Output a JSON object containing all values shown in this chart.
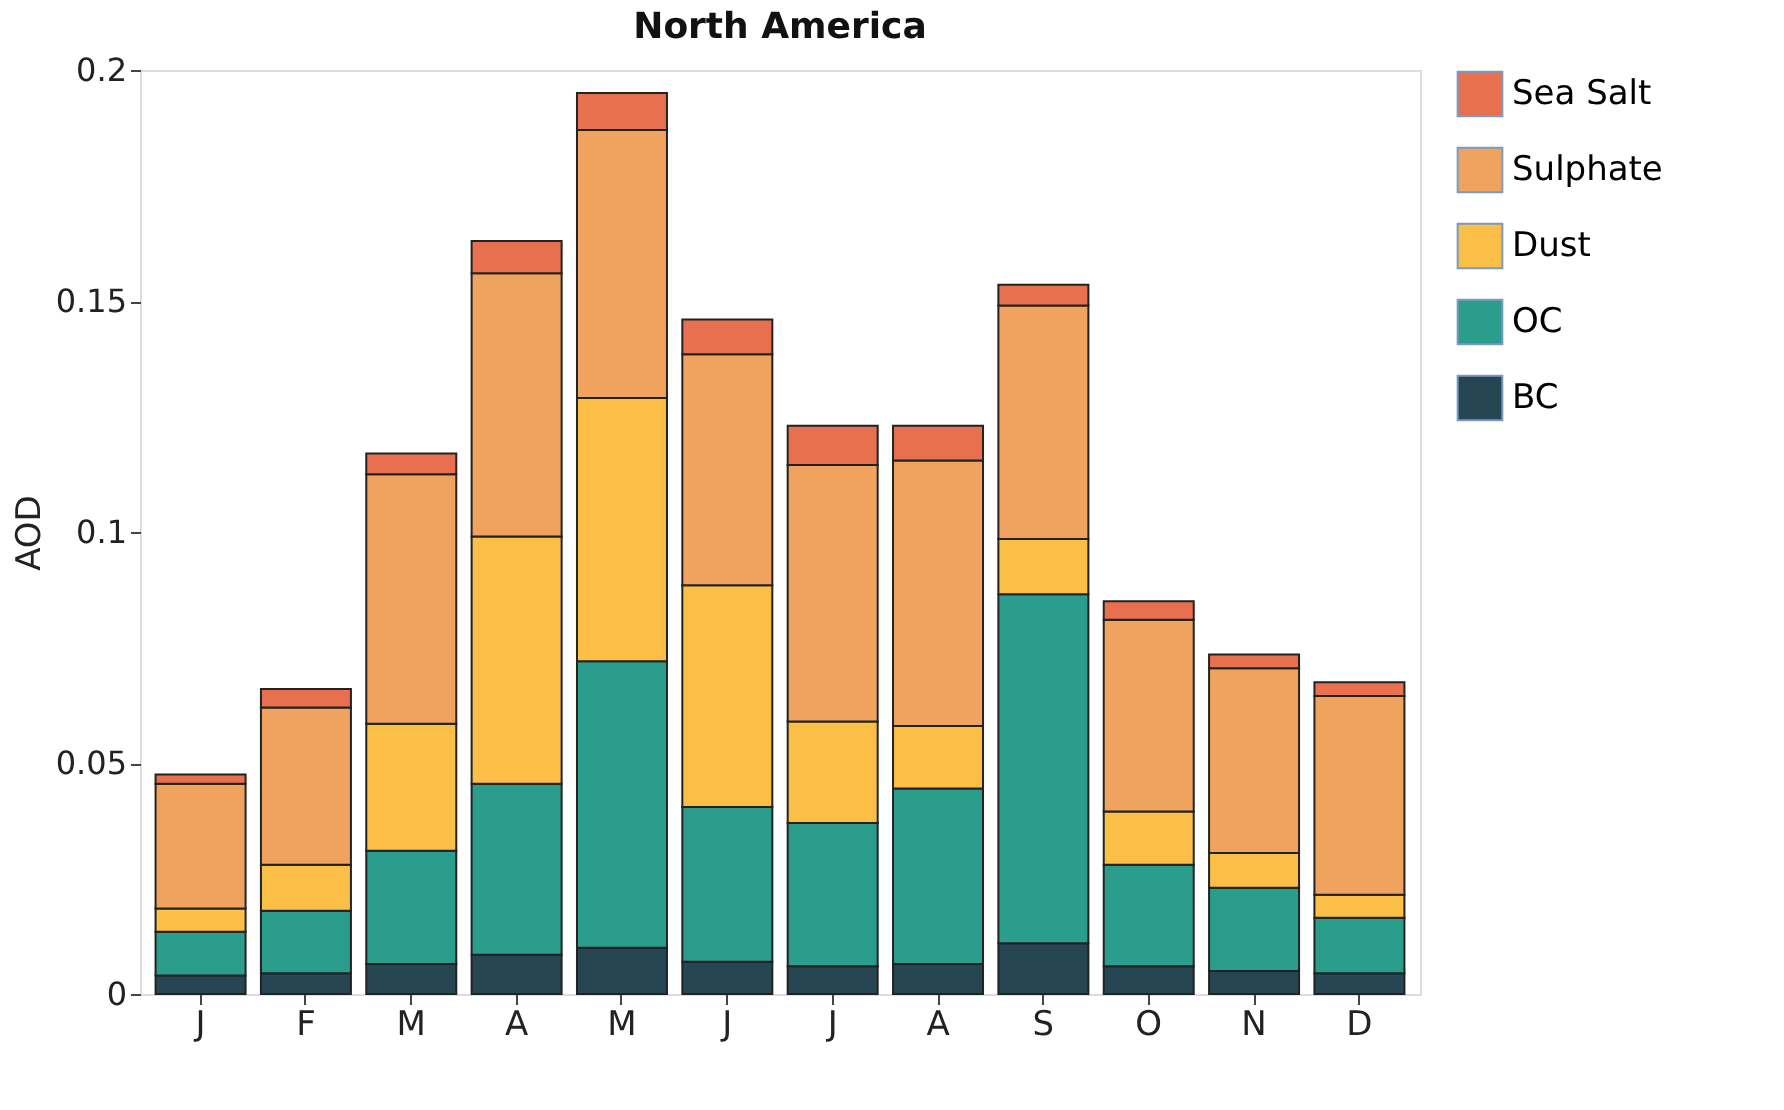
{
  "chart_data": {
    "type": "bar",
    "title": "North America",
    "ylabel": "AOD",
    "stacked": true,
    "categories": [
      "J",
      "F",
      "M",
      "A",
      "M",
      "J",
      "J",
      "A",
      "S",
      "O",
      "N",
      "D"
    ],
    "series": [
      {
        "name": "BC",
        "color": "#264653",
        "values": [
          0.004,
          0.0045,
          0.0065,
          0.0085,
          0.01,
          0.007,
          0.006,
          0.0065,
          0.011,
          0.006,
          0.005,
          0.0045
        ]
      },
      {
        "name": "OC",
        "color": "#2a9d8c",
        "values": [
          0.0095,
          0.0135,
          0.0245,
          0.037,
          0.062,
          0.0335,
          0.031,
          0.038,
          0.0755,
          0.022,
          0.018,
          0.012
        ]
      },
      {
        "name": "Dust",
        "color": "#fbbf47",
        "values": [
          0.005,
          0.01,
          0.0275,
          0.0535,
          0.057,
          0.048,
          0.022,
          0.0135,
          0.012,
          0.0115,
          0.0075,
          0.005
        ]
      },
      {
        "name": "Sulphate",
        "color": "#f0a35e",
        "values": [
          0.027,
          0.034,
          0.054,
          0.057,
          0.058,
          0.05,
          0.0555,
          0.0575,
          0.0505,
          0.0415,
          0.04,
          0.043
        ]
      },
      {
        "name": "Sea Salt",
        "color": "#e8704e",
        "values": [
          0.002,
          0.004,
          0.0045,
          0.007,
          0.008,
          0.0075,
          0.0085,
          0.0075,
          0.0045,
          0.004,
          0.003,
          0.003
        ]
      }
    ],
    "ylim": [
      0,
      0.2
    ],
    "yticks": [
      0,
      0.05,
      0.1,
      0.15,
      0.2
    ],
    "grid": false,
    "legend": "right"
  }
}
